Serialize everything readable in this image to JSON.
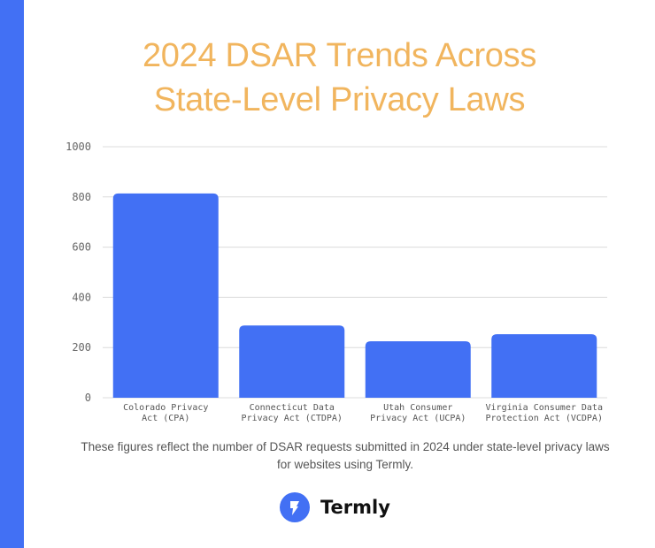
{
  "title_line1": "2024 DSAR Trends Across",
  "title_line2": "State-Level Privacy Laws",
  "caption": "These figures reflect the number of DSAR requests submitted in 2024 under state-level privacy laws for websites using Termly.",
  "brand": {
    "name": "Termly",
    "icon": "termly-logo-icon"
  },
  "colors": {
    "accent": "#4270f4",
    "title": "#f1b55e",
    "bar": "#4270f4"
  },
  "chart_data": {
    "type": "bar",
    "categories": [
      [
        "Colorado Privacy",
        "Act (CPA)"
      ],
      [
        "Connecticut Data",
        "Privacy Act (CTDPA)"
      ],
      [
        "Utah Consumer",
        "Privacy Act (UCPA)"
      ],
      [
        "Virginia Consumer Data",
        "Protection Act (VCDPA)"
      ]
    ],
    "values": [
      814,
      288,
      225,
      253
    ],
    "ylim": [
      0,
      1000
    ],
    "yticks": [
      "0",
      "200",
      "400",
      "600",
      "800",
      "1000"
    ],
    "grid": true,
    "xlabel": "",
    "ylabel": ""
  }
}
